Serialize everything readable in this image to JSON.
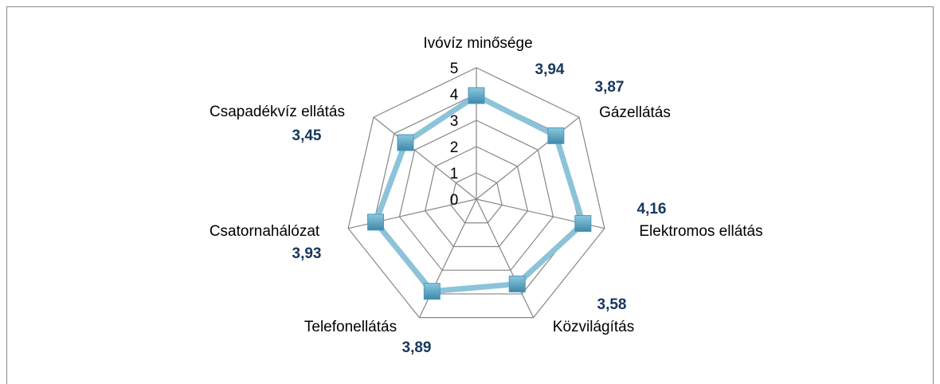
{
  "chart_data": {
    "type": "radar",
    "categories": [
      "Ivóvíz minősége",
      "Gázellátás",
      "Elektromos ellátás",
      "Közvilágítás",
      "Telefonellátás",
      "Csatornahálózat",
      "Csapadékvíz ellátás"
    ],
    "values": [
      3.94,
      3.87,
      4.16,
      3.58,
      3.89,
      3.93,
      3.45
    ],
    "value_labels": [
      "3,94",
      "3,87",
      "4,16",
      "3,58",
      "3,89",
      "3,93",
      "3,45"
    ],
    "color": "#8cc3d8",
    "marker_color": "#4a9bbd",
    "rlim": [
      0,
      5
    ],
    "rticks": [
      0,
      1,
      2,
      3,
      4,
      5
    ],
    "grid": true
  }
}
